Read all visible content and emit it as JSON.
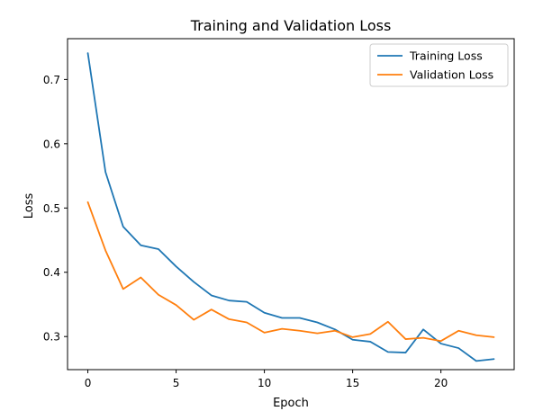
{
  "chart_data": {
    "type": "line",
    "title": "Training and Validation Loss",
    "xlabel": "Epoch",
    "ylabel": "Loss",
    "xlim": [
      -1.15,
      24.15
    ],
    "ylim": [
      0.2485,
      0.7635
    ],
    "xticks": [
      0,
      5,
      10,
      15,
      20
    ],
    "yticks": [
      0.3,
      0.4,
      0.5,
      0.6,
      0.7
    ],
    "grid": false,
    "legend_position": "top-right",
    "x": [
      0,
      1,
      2,
      3,
      4,
      5,
      6,
      7,
      8,
      9,
      10,
      11,
      12,
      13,
      14,
      15,
      16,
      17,
      18,
      19,
      20,
      21,
      22,
      23
    ],
    "series": [
      {
        "name": "Training Loss",
        "color": "#1f77b4",
        "values": [
          0.741,
          0.556,
          0.471,
          0.442,
          0.436,
          0.409,
          0.385,
          0.364,
          0.356,
          0.354,
          0.337,
          0.329,
          0.329,
          0.322,
          0.311,
          0.295,
          0.292,
          0.276,
          0.275,
          0.311,
          0.289,
          0.282,
          0.262,
          0.265
        ]
      },
      {
        "name": "Validation Loss",
        "color": "#ff7f0e",
        "values": [
          0.509,
          0.434,
          0.374,
          0.392,
          0.365,
          0.349,
          0.326,
          0.342,
          0.327,
          0.322,
          0.306,
          0.312,
          0.309,
          0.305,
          0.309,
          0.299,
          0.304,
          0.323,
          0.296,
          0.298,
          0.293,
          0.309,
          0.302,
          0.299
        ]
      }
    ]
  }
}
